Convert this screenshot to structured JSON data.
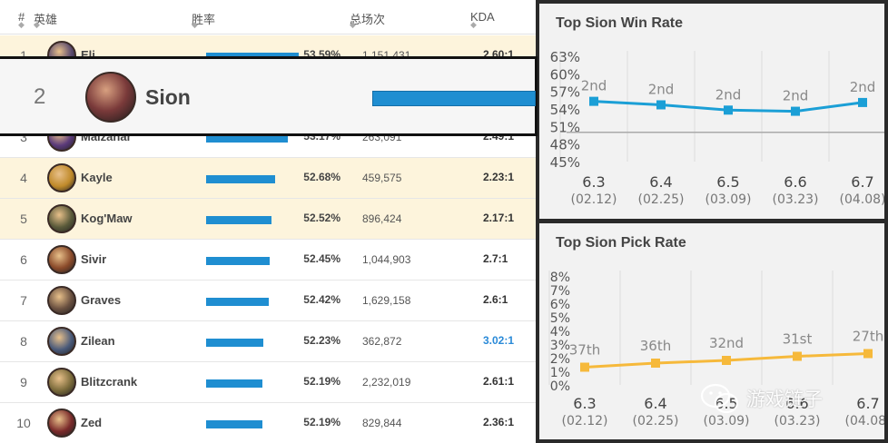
{
  "table": {
    "headers": {
      "rank": "#",
      "hero": "英雄",
      "winrate": "胜率",
      "games": "总场次",
      "kda": "KDA"
    },
    "rows": [
      {
        "rank": "1",
        "name": "Eli...",
        "winrate": "53.59%",
        "winrate_pct": 53.59,
        "games": "1,151,431",
        "kda": "2.60:1",
        "highlight": true,
        "avatar_color": "#5a4a6e"
      },
      {
        "rank": "2",
        "name": "Sion",
        "winrate": "",
        "winrate_pct": 53.3,
        "games": "",
        "kda": "",
        "highlight": false,
        "avatar_color": "#6e3a3a"
      },
      {
        "rank": "3",
        "name": "Malzahar",
        "winrate": "53.17%",
        "winrate_pct": 53.17,
        "games": "263,091",
        "kda": "2.49:1",
        "highlight": false,
        "avatar_color": "#5b3a7a"
      },
      {
        "rank": "4",
        "name": "Kayle",
        "winrate": "52.68%",
        "winrate_pct": 52.68,
        "games": "459,575",
        "kda": "2.23:1",
        "highlight": true,
        "avatar_color": "#c08a2a"
      },
      {
        "rank": "5",
        "name": "Kog'Maw",
        "winrate": "52.52%",
        "winrate_pct": 52.52,
        "games": "896,424",
        "kda": "2.17:1",
        "highlight": true,
        "avatar_color": "#5a5a3a"
      },
      {
        "rank": "6",
        "name": "Sivir",
        "winrate": "52.45%",
        "winrate_pct": 52.45,
        "games": "1,044,903",
        "kda": "2.7:1",
        "highlight": false,
        "avatar_color": "#8a4a2a"
      },
      {
        "rank": "7",
        "name": "Graves",
        "winrate": "52.42%",
        "winrate_pct": 52.42,
        "games": "1,629,158",
        "kda": "2.6:1",
        "highlight": false,
        "avatar_color": "#6a5040"
      },
      {
        "rank": "8",
        "name": "Zilean",
        "winrate": "52.23%",
        "winrate_pct": 52.23,
        "games": "362,872",
        "kda": "3.02:1",
        "highlight": false,
        "avatar_color": "#4a5a7a",
        "kda_blue": true
      },
      {
        "rank": "9",
        "name": "Blitzcrank",
        "winrate": "52.19%",
        "winrate_pct": 52.19,
        "games": "2,232,019",
        "kda": "2.61:1",
        "highlight": false,
        "avatar_color": "#7a6a3a"
      },
      {
        "rank": "10",
        "name": "Zed",
        "winrate": "52.19%",
        "winrate_pct": 52.19,
        "games": "829,844",
        "kda": "2.36:1",
        "highlight": false,
        "avatar_color": "#7a2a2a"
      }
    ]
  },
  "sion_highlight": {
    "rank": "2",
    "name": "Sion",
    "avatar_color": "#7a3a3a"
  },
  "chart_data": [
    {
      "type": "line",
      "title": "Top Sion Win Rate",
      "categories": [
        "6.3",
        "6.4",
        "6.5",
        "6.6",
        "6.7"
      ],
      "dates": [
        "(02.12)",
        "(02.25)",
        "(03.09)",
        "(03.23)",
        "(04.08)"
      ],
      "series": [
        {
          "name": "Win Rate",
          "values": [
            55.3,
            54.7,
            53.8,
            53.6,
            55.1
          ]
        }
      ],
      "point_labels": [
        "2nd",
        "2nd",
        "2nd",
        "2nd",
        "2nd"
      ],
      "ylim": [
        45,
        63
      ],
      "yticks": [
        45,
        48,
        51,
        54,
        57,
        60,
        63
      ],
      "y_tick_labels": [
        "45%",
        "48%",
        "51%",
        "54%",
        "57%",
        "60%",
        "63%"
      ],
      "reference_line": 50,
      "color": "#1b9fd6"
    },
    {
      "type": "line",
      "title": "Top Sion Pick Rate",
      "categories": [
        "6.3",
        "6.4",
        "6.5",
        "6.6",
        "6.7"
      ],
      "dates": [
        "(02.12)",
        "(02.25)",
        "(03.09)",
        "(03.23)",
        "(04.08)"
      ],
      "series": [
        {
          "name": "Pick Rate",
          "values": [
            1.3,
            1.6,
            1.8,
            2.1,
            2.3
          ]
        }
      ],
      "point_labels": [
        "37th",
        "36th",
        "32nd",
        "31st",
        "27th"
      ],
      "ylim": [
        0,
        8
      ],
      "yticks": [
        0,
        1,
        2,
        3,
        4,
        5,
        6,
        7,
        8
      ],
      "y_tick_labels": [
        "0%",
        "1%",
        "2%",
        "3%",
        "4%",
        "5%",
        "6%",
        "7%",
        "8%"
      ],
      "color": "#f6b93b"
    }
  ],
  "watermark": {
    "text": "游戏链子"
  },
  "colors": {
    "bar": "#1f8ed1",
    "highlight_row": "#fdf4dc",
    "win_line": "#1b9fd6",
    "pick_line": "#f6b93b"
  }
}
